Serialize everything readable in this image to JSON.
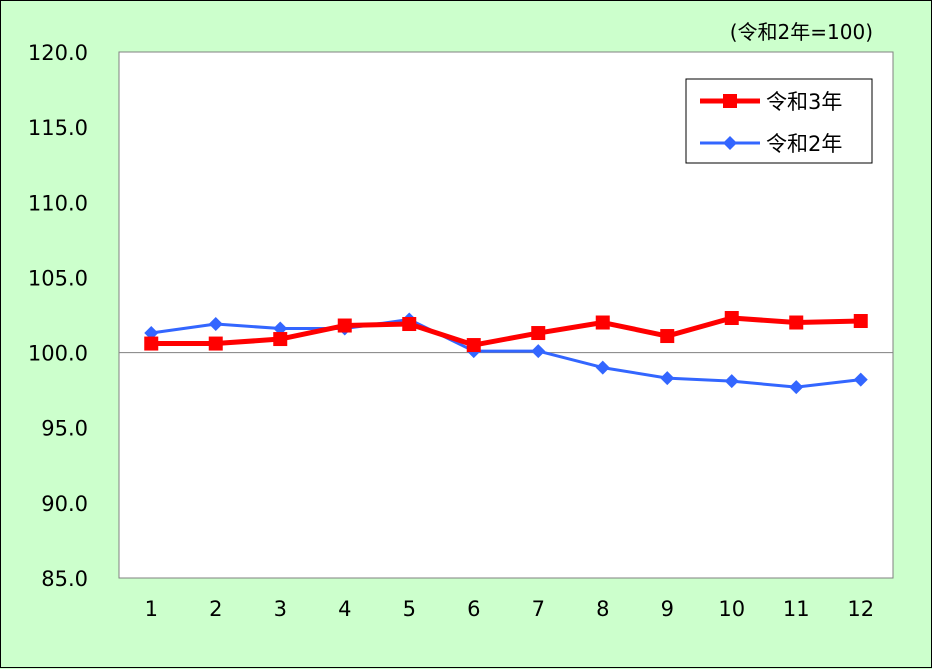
{
  "chart_data": {
    "type": "line",
    "unit_note": "(令和2年=100)",
    "categories": [
      "1",
      "2",
      "3",
      "4",
      "5",
      "6",
      "7",
      "8",
      "9",
      "10",
      "11",
      "12"
    ],
    "ylim": [
      85.0,
      120.0
    ],
    "yticks": [
      "85.0",
      "90.0",
      "95.0",
      "100.0",
      "105.0",
      "110.0",
      "115.0",
      "120.0"
    ],
    "reference_line": 100.0,
    "grid": false,
    "legend_position": "top-right",
    "series": [
      {
        "name": "令和3年",
        "color": "#ff0000",
        "marker": "square",
        "values": [
          100.6,
          100.6,
          100.9,
          101.8,
          101.9,
          100.5,
          101.3,
          102.0,
          101.1,
          102.3,
          102.0,
          102.1
        ]
      },
      {
        "name": "令和2年",
        "color": "#3366ff",
        "marker": "diamond",
        "values": [
          101.3,
          101.9,
          101.6,
          101.6,
          102.2,
          100.1,
          100.1,
          99.0,
          98.3,
          98.1,
          97.7,
          98.2
        ]
      }
    ]
  }
}
